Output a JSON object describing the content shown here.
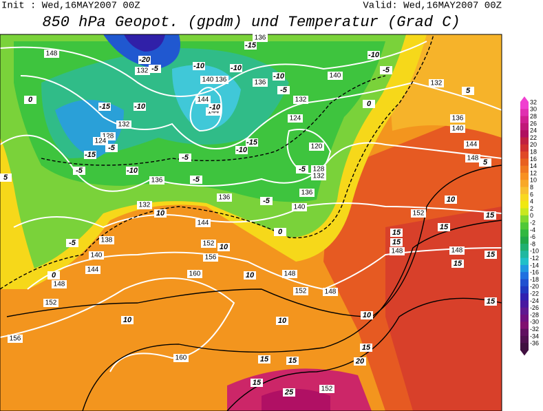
{
  "header": {
    "init": "Init : Wed,16MAY2007 00Z",
    "valid": "Valid: Wed,16MAY2007 00Z",
    "title": "850 hPa Geopot. (gpdm) und Temperatur (Grad C)"
  },
  "colorbar": {
    "labels": [
      "32",
      "30",
      "28",
      "26",
      "24",
      "22",
      "20",
      "18",
      "16",
      "14",
      "12",
      "10",
      "8",
      "6",
      "4",
      "2",
      "0",
      "-2",
      "-4",
      "-6",
      "-8",
      "-10",
      "-12",
      "-14",
      "-16",
      "-18",
      "-20",
      "-22",
      "-24",
      "-26",
      "-28",
      "-30",
      "-32",
      "-34",
      "-36"
    ],
    "colors": [
      "#f040d0",
      "#e030b0",
      "#d02090",
      "#c01878",
      "#b01060",
      "#c02040",
      "#d03030",
      "#e04828",
      "#e86020",
      "#f07820",
      "#f89020",
      "#f8a828",
      "#f8c030",
      "#f8d820",
      "#f0e810",
      "#c8e820",
      "#80d830",
      "#50c838",
      "#30b840",
      "#20a848",
      "#20b070",
      "#20b8a0",
      "#20c0c8",
      "#2098e0",
      "#2070e0",
      "#2050d0",
      "#2038c0",
      "#3020b0",
      "#4818a0",
      "#601890",
      "#701080",
      "#801070",
      "#601060",
      "#501050",
      "#401040"
    ]
  },
  "map": {
    "geopotential_labels": [
      "148",
      "132",
      "140",
      "136",
      "136",
      "140",
      "132",
      "132",
      "144",
      "144",
      "124",
      "136",
      "140",
      "132",
      "128",
      "124",
      "144",
      "120",
      "148",
      "128",
      "132",
      "136",
      "136",
      "140",
      "136",
      "132",
      "144",
      "152",
      "138",
      "152",
      "156",
      "140",
      "144",
      "148",
      "160",
      "148",
      "152",
      "148",
      "148",
      "148",
      "152",
      "156",
      "160",
      "152",
      "136"
    ],
    "temperature_labels": [
      "-20",
      "-15",
      "-10",
      "-5",
      "-5",
      "-10",
      "-10",
      "-10",
      "-5",
      "-15",
      "-10",
      "-10",
      "-5",
      "-15",
      "-10",
      "-10",
      "-15",
      "-5",
      "-5",
      "-5",
      "-5",
      "-5",
      "-5",
      "0",
      "0",
      "5",
      "5",
      "10",
      "10",
      "10",
      "10",
      "10",
      "10",
      "10",
      "15",
      "15",
      "15",
      "15",
      "15",
      "15",
      "15",
      "15",
      "15",
      "15",
      "20",
      "15",
      "25",
      "5",
      "0",
      "0"
    ]
  }
}
